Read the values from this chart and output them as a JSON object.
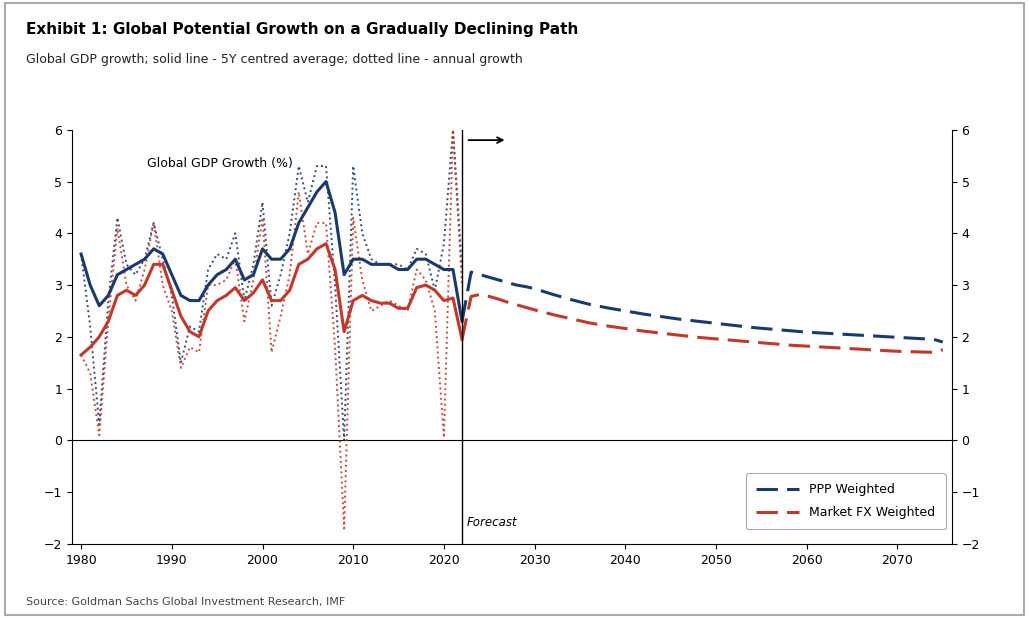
{
  "title1": "Exhibit 1: Global Potential Growth on a Gradually Declining Path",
  "title2": "Global GDP growth; solid line - 5Y centred average; dotted line - annual growth",
  "source": "Source: Goldman Sachs Global Investment Research, IMF",
  "ylabel_left": "Global GDP Growth (%)",
  "ylim": [
    -2,
    6
  ],
  "yticks": [
    -2,
    -1,
    0,
    1,
    2,
    3,
    4,
    5,
    6
  ],
  "forecast_year": 2022,
  "forecast_label": "Forecast",
  "ppp_label": "PPP Weighted",
  "mfx_label": "Market FX Weighted",
  "ppp_color": "#1a3a6b",
  "mfx_color": "#c0392b",
  "historical_years": [
    1980,
    1981,
    1982,
    1983,
    1984,
    1985,
    1986,
    1987,
    1988,
    1989,
    1990,
    1991,
    1992,
    1993,
    1994,
    1995,
    1996,
    1997,
    1998,
    1999,
    2000,
    2001,
    2002,
    2003,
    2004,
    2005,
    2006,
    2007,
    2008,
    2009,
    2010,
    2011,
    2012,
    2013,
    2014,
    2015,
    2016,
    2017,
    2018,
    2019,
    2020,
    2021,
    2022
  ],
  "ppp_solid": [
    3.6,
    3.0,
    2.6,
    2.8,
    3.2,
    3.3,
    3.4,
    3.5,
    3.7,
    3.6,
    3.2,
    2.8,
    2.7,
    2.7,
    3.0,
    3.2,
    3.3,
    3.5,
    3.1,
    3.2,
    3.7,
    3.5,
    3.5,
    3.7,
    4.2,
    4.5,
    4.8,
    5.0,
    4.4,
    3.2,
    3.5,
    3.5,
    3.4,
    3.4,
    3.4,
    3.3,
    3.3,
    3.5,
    3.5,
    3.4,
    3.3,
    3.3,
    2.3
  ],
  "mfx_solid": [
    1.65,
    1.8,
    2.0,
    2.3,
    2.8,
    2.9,
    2.8,
    3.0,
    3.4,
    3.4,
    2.9,
    2.4,
    2.1,
    2.0,
    2.5,
    2.7,
    2.8,
    2.95,
    2.7,
    2.85,
    3.1,
    2.7,
    2.7,
    2.9,
    3.4,
    3.5,
    3.7,
    3.8,
    3.3,
    2.1,
    2.7,
    2.8,
    2.7,
    2.65,
    2.65,
    2.55,
    2.55,
    2.95,
    3.0,
    2.9,
    2.7,
    2.75,
    1.95
  ],
  "ppp_dotted": [
    3.6,
    2.2,
    0.3,
    2.7,
    4.3,
    3.4,
    3.2,
    3.5,
    4.2,
    3.5,
    2.8,
    1.5,
    2.2,
    2.1,
    3.3,
    3.6,
    3.5,
    4.0,
    2.7,
    3.4,
    4.6,
    2.6,
    3.2,
    4.0,
    5.3,
    4.6,
    5.3,
    5.3,
    3.0,
    0.0,
    5.3,
    4.0,
    3.5,
    3.4,
    3.4,
    3.4,
    3.3,
    3.7,
    3.6,
    2.9,
    3.8,
    6.0,
    3.3
  ],
  "mfx_dotted": [
    1.65,
    1.3,
    0.1,
    2.3,
    4.1,
    3.0,
    2.7,
    3.3,
    4.2,
    3.0,
    2.5,
    1.4,
    1.8,
    1.7,
    3.0,
    3.0,
    3.1,
    3.5,
    2.3,
    3.1,
    4.3,
    1.7,
    2.4,
    3.2,
    4.8,
    3.6,
    4.2,
    4.2,
    1.8,
    -1.7,
    4.3,
    3.1,
    2.5,
    2.6,
    2.7,
    2.6,
    2.5,
    3.3,
    3.1,
    2.5,
    0.05,
    6.0,
    3.0
  ],
  "forecast_years": [
    2022,
    2023,
    2024,
    2025,
    2026,
    2027,
    2028,
    2029,
    2030,
    2032,
    2034,
    2036,
    2038,
    2040,
    2042,
    2044,
    2046,
    2048,
    2050,
    2052,
    2054,
    2056,
    2058,
    2060,
    2062,
    2064,
    2066,
    2068,
    2070,
    2072,
    2074,
    2075
  ],
  "ppp_forecast": [
    2.3,
    3.25,
    3.2,
    3.15,
    3.1,
    3.05,
    3.0,
    2.97,
    2.93,
    2.82,
    2.72,
    2.63,
    2.56,
    2.5,
    2.44,
    2.39,
    2.34,
    2.3,
    2.26,
    2.22,
    2.18,
    2.15,
    2.12,
    2.09,
    2.07,
    2.05,
    2.03,
    2.01,
    1.99,
    1.97,
    1.95,
    1.9
  ],
  "mfx_forecast": [
    1.95,
    2.78,
    2.82,
    2.78,
    2.73,
    2.67,
    2.62,
    2.57,
    2.52,
    2.43,
    2.35,
    2.27,
    2.21,
    2.16,
    2.11,
    2.07,
    2.03,
    1.99,
    1.96,
    1.93,
    1.9,
    1.87,
    1.84,
    1.82,
    1.8,
    1.78,
    1.76,
    1.74,
    1.72,
    1.71,
    1.7,
    1.75
  ]
}
